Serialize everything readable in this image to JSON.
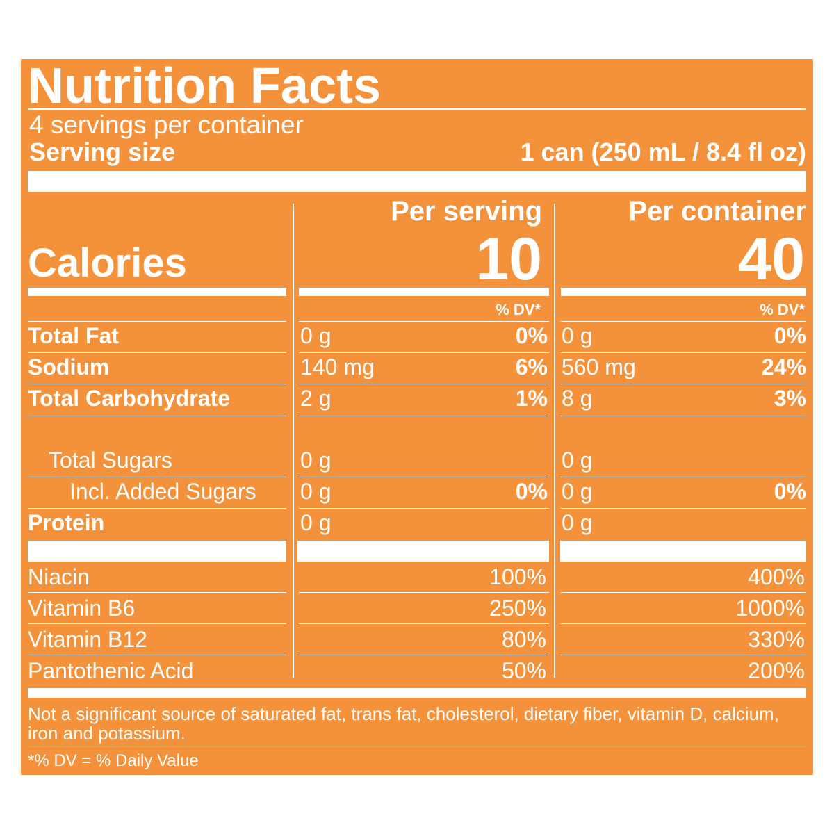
{
  "label": {
    "title": "Nutrition Facts",
    "servings": "4 servings per container",
    "serving_size_label": "Serving size",
    "serving_size_value": "1 can (250 mL / 8.4 fl oz)",
    "columns": [
      "Per serving",
      "Per container"
    ],
    "calories_label": "Calories",
    "calories": [
      "10",
      "40"
    ],
    "dv_header": "% DV*",
    "nutrients": [
      {
        "name": "Total Fat",
        "bold": true,
        "indent": 0,
        "serving": "0 g",
        "serving_dv": "0%",
        "container": "0 g",
        "container_dv": "0%"
      },
      {
        "name": "Sodium",
        "bold": true,
        "indent": 0,
        "serving": "140 mg",
        "serving_dv": "6%",
        "container": "560 mg",
        "container_dv": "24%"
      },
      {
        "name": "Total Carbohydrate",
        "bold": true,
        "indent": 0,
        "serving": "2 g",
        "serving_dv": "1%",
        "container": "8 g",
        "container_dv": "3%"
      },
      {
        "name": "Total Sugars",
        "bold": false,
        "indent": 1,
        "serving": "0 g",
        "container": "0 g"
      },
      {
        "name": "Incl. Added Sugars",
        "bold": false,
        "indent": 2,
        "serving": "0 g",
        "serving_dv": "0%",
        "container": "0 g",
        "container_dv": "0%"
      },
      {
        "name": "Protein",
        "bold": true,
        "indent": 0,
        "serving": "0 g",
        "container": "0 g"
      }
    ],
    "vitamins": [
      {
        "name": "Niacin",
        "serving_dv": "100%",
        "container_dv": "400%"
      },
      {
        "name": "Vitamin B6",
        "serving_dv": "250%",
        "container_dv": "1000%"
      },
      {
        "name": "Vitamin B12",
        "serving_dv": "80%",
        "container_dv": "330%"
      },
      {
        "name": "Pantothenic Acid",
        "serving_dv": "50%",
        "container_dv": "200%"
      }
    ],
    "footnote": "Not a significant source of saturated fat, trans fat, cholesterol, dietary fiber, vitamin D, calcium, iron and potassium.",
    "dv_note": "*% DV = % Daily Value"
  }
}
